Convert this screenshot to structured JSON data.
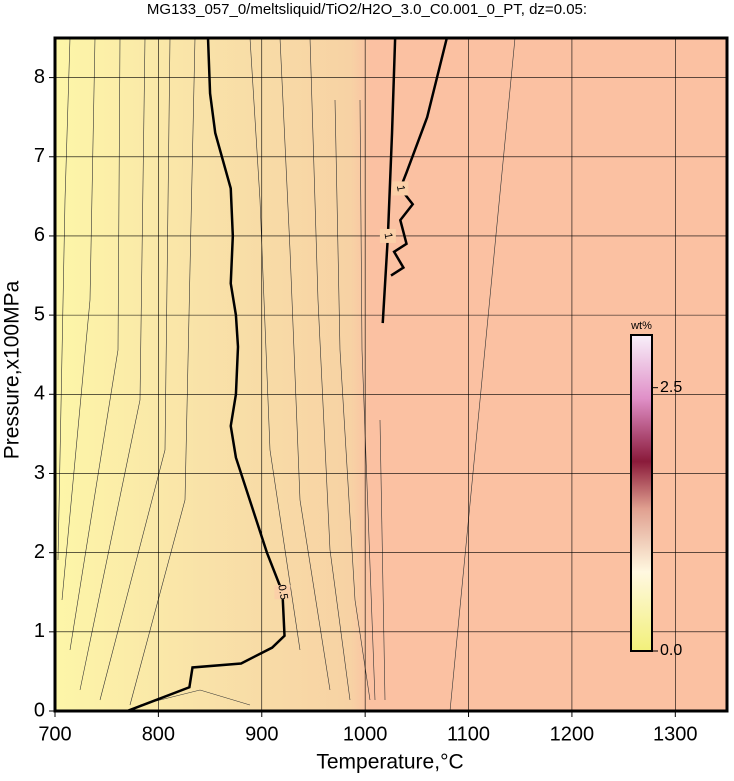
{
  "chart_data": {
    "type": "contour",
    "title": "MG133_057_0/meltsliquid/TiO2/H2O_3.0_C0.001_0_PT, dz=0.05:",
    "x_label": "Temperature,°C",
    "y_label": "Pressure,x100MPa",
    "xlim": [
      700,
      1350
    ],
    "ylim": [
      0,
      8.5
    ],
    "xticks": [
      700,
      800,
      900,
      1000,
      1100,
      1200,
      1300
    ],
    "yticks": [
      0,
      1,
      2,
      3,
      4,
      5,
      6,
      7,
      8
    ],
    "grid": true,
    "contours": [
      {
        "level": 0.5,
        "label": "0.5",
        "x": [
          770,
          790,
          830,
          833,
          880,
          910,
          922,
          920,
          905,
          890,
          875,
          870,
          875,
          877,
          875,
          870,
          872,
          870,
          855,
          850,
          848
        ],
        "y": [
          0,
          0.1,
          0.3,
          0.55,
          0.6,
          0.8,
          0.95,
          1.5,
          2.0,
          2.6,
          3.2,
          3.6,
          4.0,
          4.6,
          5.0,
          5.4,
          6.0,
          6.6,
          7.3,
          7.8,
          8.5
        ]
      },
      {
        "level": 1,
        "label": "1",
        "x": [
          1017,
          1022,
          1026,
          1029
        ],
        "y": [
          4.9,
          6.0,
          7.3,
          8.5
        ]
      },
      {
        "level": 1,
        "label": "1",
        "x": [
          1079,
          1060,
          1040,
          1034,
          1046,
          1034,
          1040,
          1028,
          1037,
          1025
        ],
        "y": [
          8.5,
          7.5,
          6.8,
          6.6,
          6.4,
          6.2,
          5.9,
          5.8,
          5.6,
          5.5
        ]
      }
    ],
    "colorbar": {
      "label": "wt%",
      "clim": [
        0,
        3
      ],
      "ticks": [
        {
          "value": 0,
          "label": "0.0"
        },
        {
          "value": 2.5,
          "label": "2.5"
        }
      ]
    }
  }
}
